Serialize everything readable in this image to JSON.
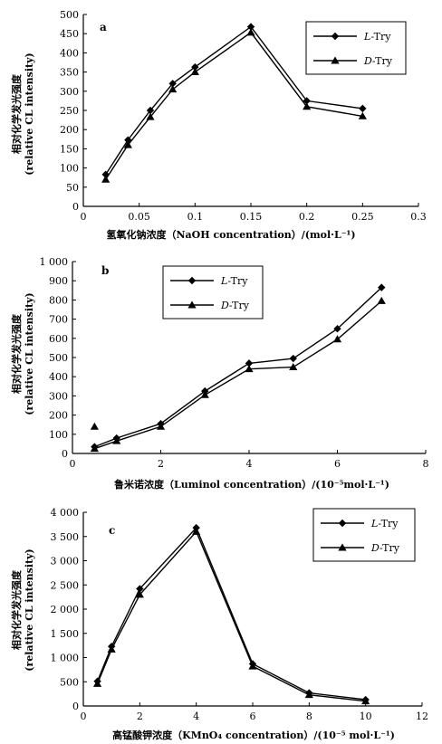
{
  "chart_data": [
    {
      "type": "line",
      "panel_label": "a",
      "xlabel": "氢氧化钠浓度（NaOH concentration）/(mol·L⁻¹)",
      "ylabel_cn": "相对化学发光强度",
      "ylabel_en": "(relative CL intensity)",
      "xlim": [
        0,
        0.3
      ],
      "ylim": [
        0,
        500
      ],
      "xticks": [
        0,
        0.05,
        0.1,
        0.15,
        0.2,
        0.25,
        0.3
      ],
      "xtick_labels": [
        "0",
        "0.05",
        "0.1",
        "0.15",
        "0.2",
        "0.25",
        "0.3"
      ],
      "yticks": [
        0,
        50,
        100,
        150,
        200,
        250,
        300,
        350,
        400,
        450,
        500
      ],
      "ytick_labels": [
        "0",
        "50",
        "100",
        "150",
        "200",
        "250",
        "300",
        "350",
        "400",
        "450",
        "500"
      ],
      "legend_position": "top-right",
      "series": [
        {
          "name": "L-Try",
          "marker": "diamond",
          "x": [
            0.02,
            0.04,
            0.06,
            0.08,
            0.1,
            0.15,
            0.2,
            0.25
          ],
          "y": [
            83,
            173,
            250,
            320,
            363,
            468,
            275,
            255
          ]
        },
        {
          "name": "D-Try",
          "marker": "triangle",
          "x": [
            0.02,
            0.04,
            0.06,
            0.08,
            0.1,
            0.15,
            0.2,
            0.25
          ],
          "y": [
            70,
            160,
            233,
            305,
            350,
            453,
            260,
            235
          ]
        }
      ]
    },
    {
      "type": "line",
      "panel_label": "b",
      "xlabel": "鲁米诺浓度（Luminol concentration）/(10⁻⁵mol·L⁻¹)",
      "ylabel_cn": "相对化学发光强度",
      "ylabel_en": "(relative CL intensity)",
      "xlim": [
        0,
        8
      ],
      "ylim": [
        0,
        1000
      ],
      "xticks": [
        0,
        2,
        4,
        6,
        8
      ],
      "xtick_labels": [
        "0",
        "2",
        "4",
        "6",
        "8"
      ],
      "yticks": [
        0,
        100,
        200,
        300,
        400,
        500,
        600,
        700,
        800,
        900,
        1000
      ],
      "ytick_labels": [
        "0",
        "100",
        "200",
        "300",
        "400",
        "500",
        "600",
        "700",
        "800",
        "900",
        "1 000"
      ],
      "legend_position": "top-left",
      "series": [
        {
          "name": "L-Try",
          "marker": "diamond",
          "x": [
            0.5,
            1,
            2,
            3,
            4,
            5,
            6,
            7
          ],
          "y": [
            35,
            80,
            155,
            325,
            470,
            495,
            650,
            865
          ]
        },
        {
          "name": "D-Try",
          "marker": "triangle",
          "x": [
            0.5,
            0.5,
            1,
            2,
            3,
            4,
            5,
            6,
            7
          ],
          "y": [
            140,
            25,
            65,
            140,
            305,
            440,
            450,
            595,
            795
          ]
        }
      ]
    },
    {
      "type": "line",
      "panel_label": "c",
      "xlabel": "高锰酸钾浓度（KMnO₄ concentration）/(10⁻⁵ mol·L⁻¹)",
      "ylabel_cn": "相对化学发光强度",
      "ylabel_en": "(relative CL intensity)",
      "xlim": [
        0,
        12
      ],
      "ylim": [
        0,
        4000
      ],
      "xticks": [
        0,
        2,
        4,
        6,
        8,
        10,
        12
      ],
      "xtick_labels": [
        "0",
        "2",
        "4",
        "6",
        "8",
        "10",
        "12"
      ],
      "yticks": [
        0,
        500,
        1000,
        1500,
        2000,
        2500,
        3000,
        3500,
        4000
      ],
      "ytick_labels": [
        "0",
        "500",
        "1 000",
        "1 500",
        "2 000",
        "2 500",
        "3 000",
        "3 500",
        "4 000"
      ],
      "legend_position": "top-right",
      "series": [
        {
          "name": "L-Try",
          "marker": "diamond",
          "x": [
            0.5,
            1,
            2,
            4,
            6,
            8,
            10
          ],
          "y": [
            510,
            1230,
            2420,
            3680,
            870,
            270,
            130
          ]
        },
        {
          "name": "D-Try",
          "marker": "triangle",
          "x": [
            0.5,
            1,
            2,
            4,
            6,
            8,
            10
          ],
          "y": [
            460,
            1170,
            2300,
            3600,
            820,
            230,
            100
          ]
        }
      ]
    }
  ]
}
